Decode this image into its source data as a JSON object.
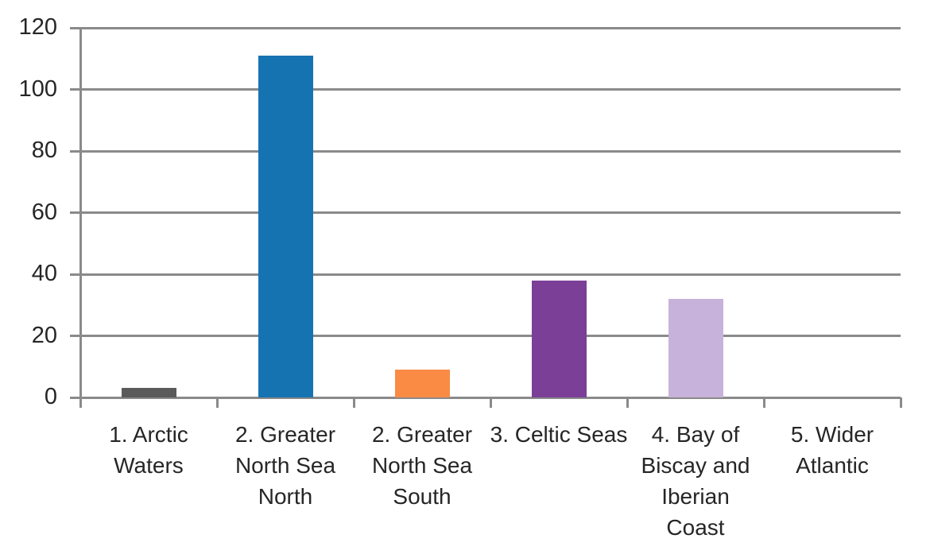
{
  "chart_data": {
    "type": "bar",
    "title": "",
    "xlabel": "",
    "ylabel": "",
    "legend_position": "none",
    "grid": true,
    "categories": [
      "1. Arctic Waters",
      "2. Greater North Sea North",
      "2. Greater North Sea South",
      "3. Celtic Seas",
      "4. Bay of Biscay and Iberian Coast",
      "5. Wider Atlantic"
    ],
    "category_label_lines": [
      [
        "1. Arctic",
        "Waters"
      ],
      [
        "2. Greater",
        "North Sea",
        "North"
      ],
      [
        "2. Greater",
        "North Sea",
        "South"
      ],
      [
        "3. Celtic Seas"
      ],
      [
        "4. Bay of",
        "Biscay and",
        "Iberian",
        "Coast"
      ],
      [
        "5. Wider",
        "Atlantic"
      ]
    ],
    "values": [
      3,
      111,
      9,
      38,
      32,
      0
    ],
    "bar_colors": [
      "#5A5A5A",
      "#1673B2",
      "#FA8B44",
      "#7B3F98",
      "#C6B2DA",
      null
    ],
    "ylim": [
      0,
      120
    ],
    "yticks": [
      0,
      20,
      40,
      60,
      80,
      100,
      120
    ]
  },
  "colors": {
    "background": "#FFFFFF",
    "gridline": "#8A8A8A",
    "axis": "#8A8A8A",
    "text": "#262626"
  }
}
